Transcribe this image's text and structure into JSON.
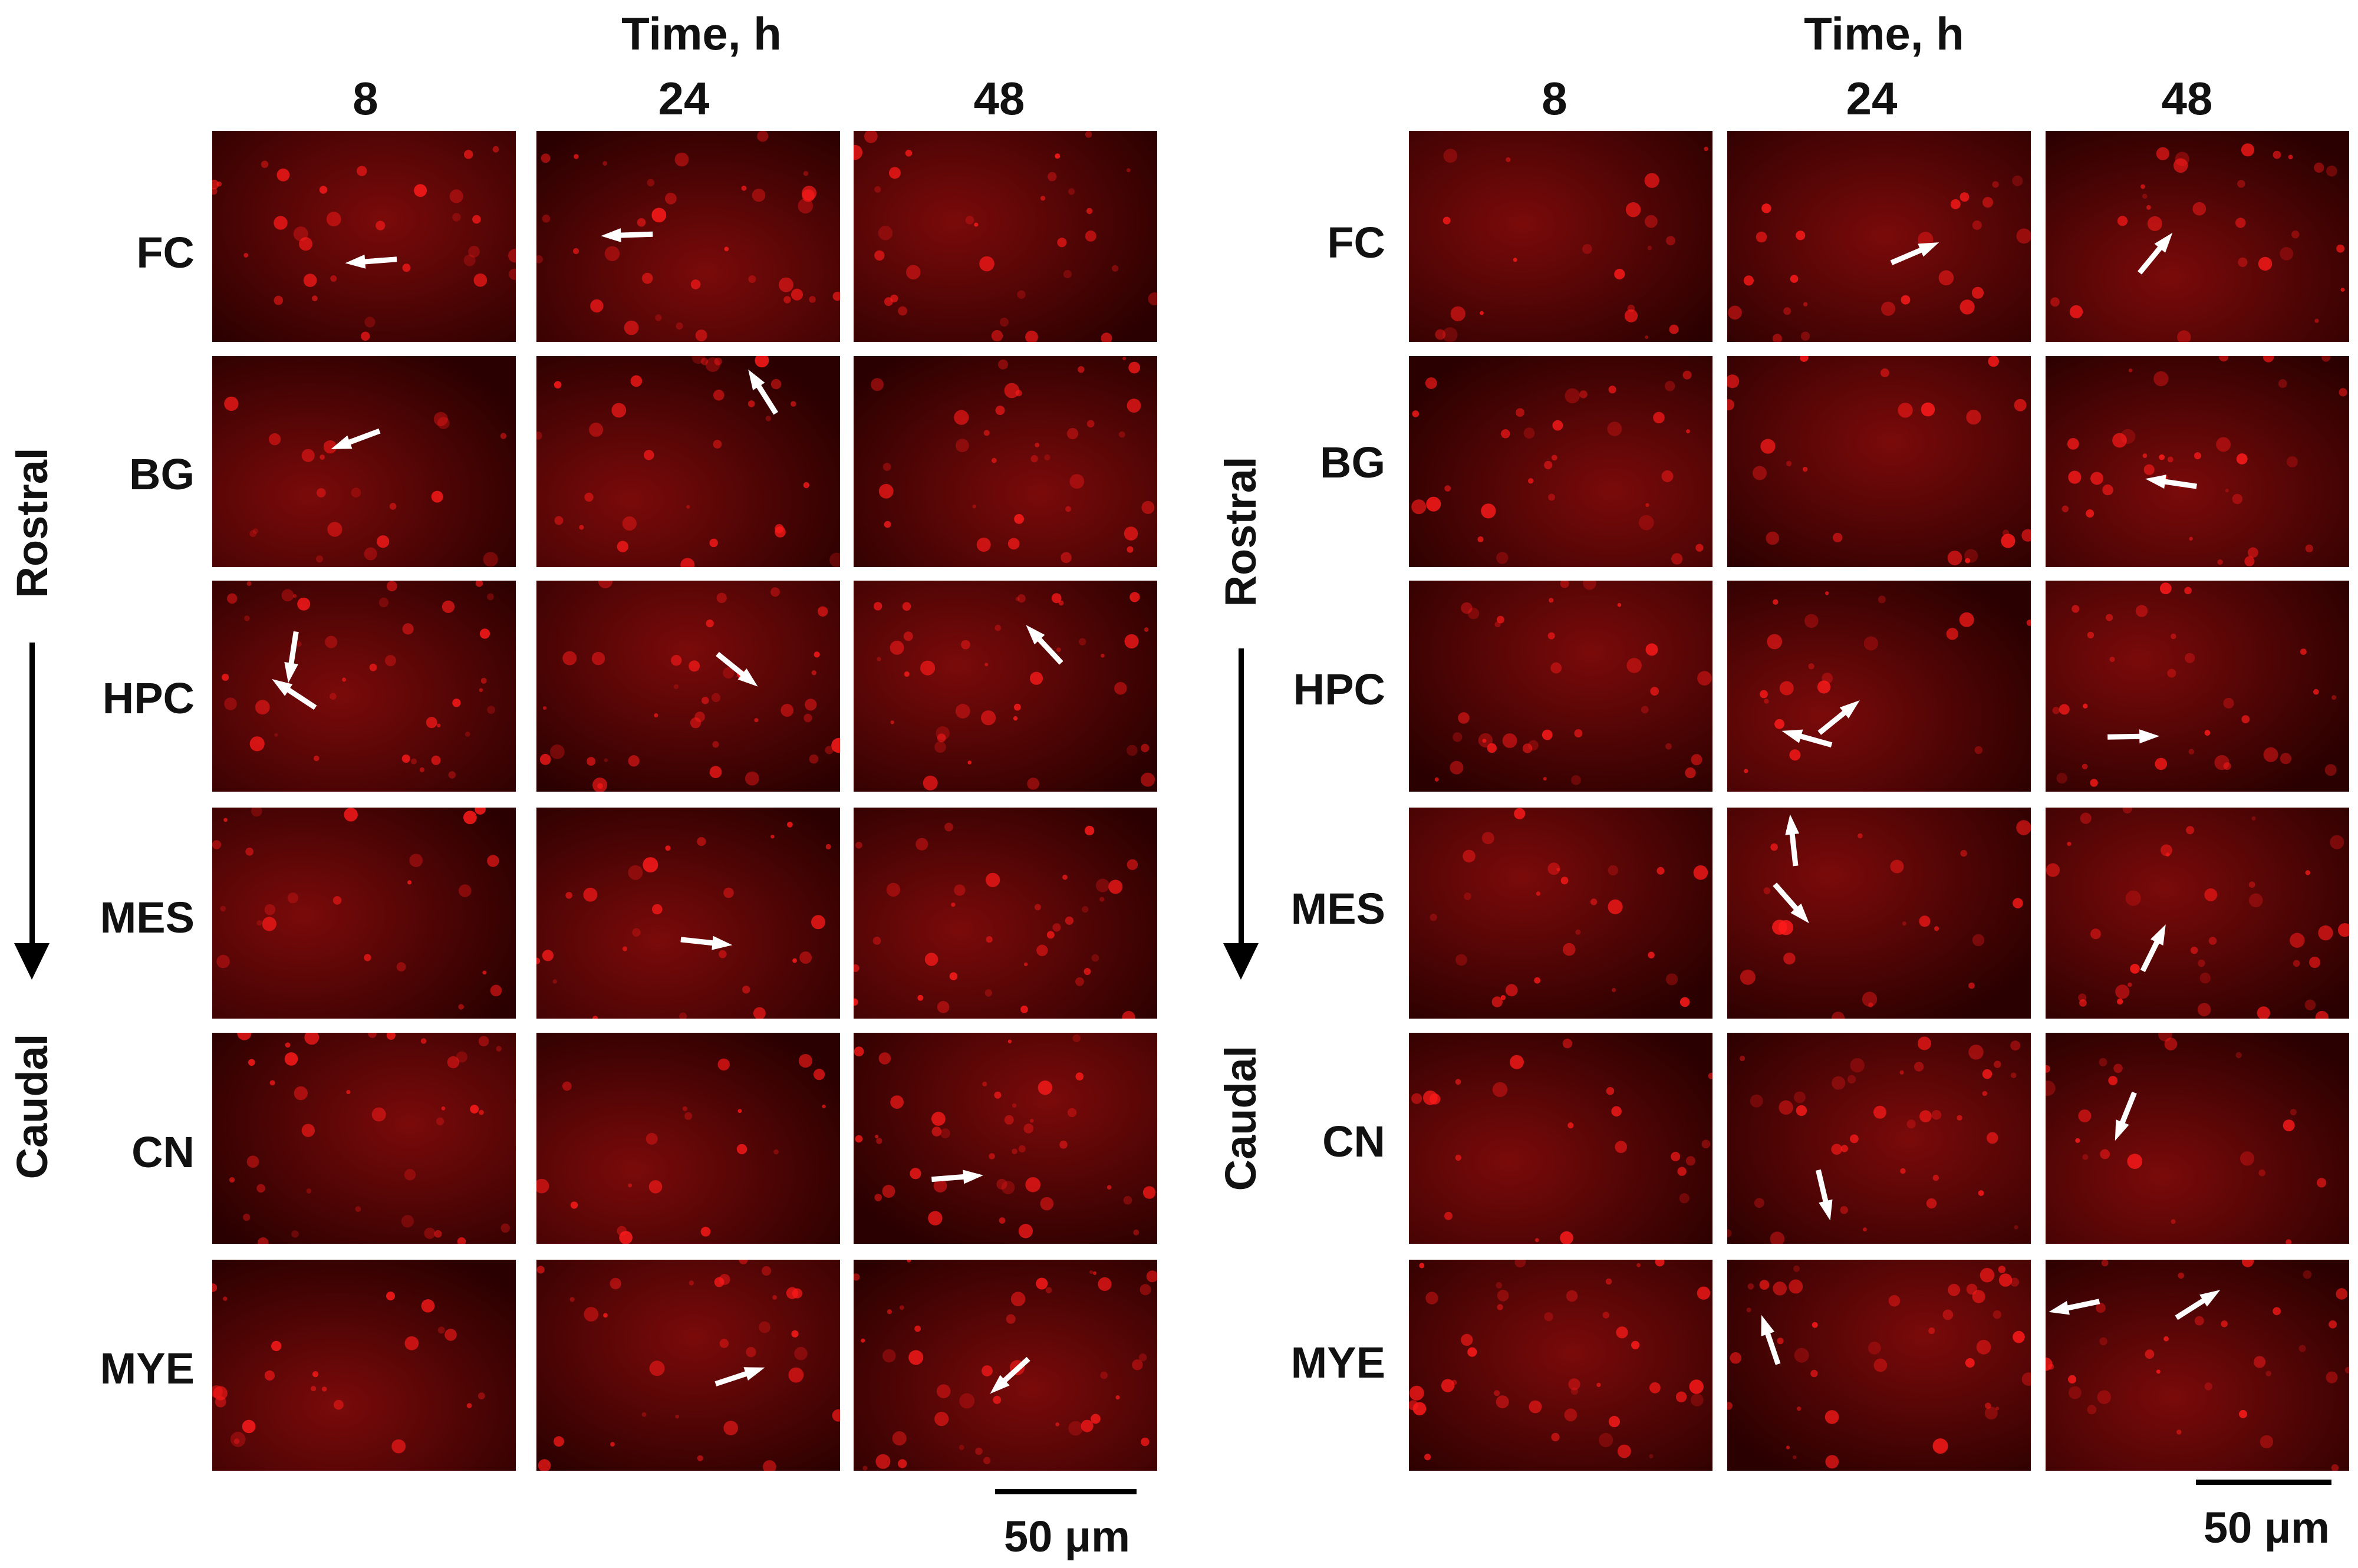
{
  "colors": {
    "tissue_dark": "#2a0000",
    "tissue_mid": "#7a0a0a",
    "cell_bright": "#ff1a1a",
    "arrow": "#ffffff"
  },
  "panels": [
    {
      "time_title": "Time, h",
      "time_points": [
        "8",
        "24",
        "48"
      ],
      "regions": [
        "FC",
        "BG",
        "HPC",
        "MES",
        "CN",
        "MYE"
      ],
      "axis_top": "Rostral",
      "axis_bottom": "Caudal",
      "scale_label": "50 μm",
      "arrow_counts": [
        [
          1,
          1,
          0
        ],
        [
          1,
          1,
          0
        ],
        [
          2,
          1,
          1
        ],
        [
          0,
          1,
          0
        ],
        [
          0,
          0,
          1
        ],
        [
          0,
          1,
          1
        ]
      ]
    },
    {
      "time_title": "Time, h",
      "time_points": [
        "8",
        "24",
        "48"
      ],
      "regions": [
        "FC",
        "BG",
        "HPC",
        "MES",
        "CN",
        "MYE"
      ],
      "axis_top": "Rostral",
      "axis_bottom": "Caudal",
      "scale_label": "50 μm",
      "arrow_counts": [
        [
          0,
          1,
          1
        ],
        [
          0,
          0,
          1
        ],
        [
          0,
          2,
          1
        ],
        [
          0,
          2,
          1
        ],
        [
          0,
          1,
          1
        ],
        [
          0,
          1,
          2
        ]
      ]
    }
  ]
}
